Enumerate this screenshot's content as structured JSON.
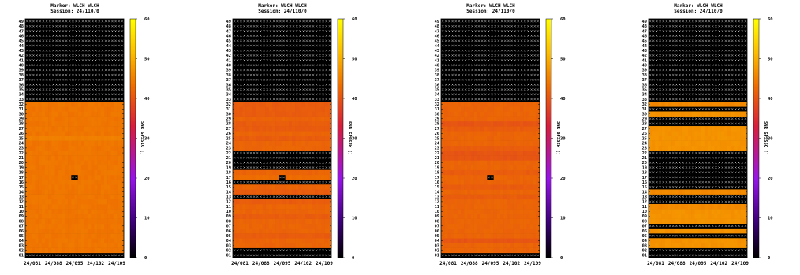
{
  "chart_data": [
    {
      "type": "heatmap",
      "title": "Marker: WLCH WLCH",
      "subtitle": "Session: 24/110/0",
      "colorbar_label": "SNR GPSS1C []",
      "x_ticks": [
        "24/081",
        "24/088",
        "24/095",
        "24/102",
        "24/109"
      ],
      "y_ticks": [
        "01",
        "02",
        "03",
        "04",
        "05",
        "06",
        "07",
        "08",
        "09",
        "10",
        "11",
        "12",
        "13",
        "14",
        "15",
        "16",
        "17",
        "18",
        "19",
        "20",
        "21",
        "22",
        "23",
        "24",
        "25",
        "26",
        "27",
        "28",
        "29",
        "30",
        "31",
        "32",
        "33",
        "34",
        "35",
        "36",
        "37",
        "38",
        "39",
        "40",
        "41",
        "42",
        "43",
        "44",
        "45",
        "46",
        "47",
        "48",
        "49"
      ],
      "colorbar_ticks": [
        0,
        10,
        20,
        30,
        40,
        50,
        60
      ],
      "zlim": [
        0,
        60
      ],
      "no_data_prn": [
        1,
        33,
        34,
        35,
        36,
        37,
        38,
        39,
        40,
        41,
        42,
        43,
        44,
        45,
        46,
        47,
        48,
        49
      ],
      "prn_values": {
        "02": 44,
        "03": 44,
        "04": 44,
        "05": 44,
        "06": 44,
        "07": 44,
        "08": 44,
        "09": 44,
        "10": 44,
        "11": 44,
        "12": 44,
        "13": 44,
        "14": 44,
        "15": 44,
        "16": 44,
        "17": 44,
        "18": 44,
        "19": 44,
        "20": 44,
        "21": 44,
        "22": 44,
        "23": 44,
        "24": 44,
        "25": 45,
        "26": 44,
        "27": 44,
        "28": 44,
        "29": 44,
        "30": 44,
        "31": 44,
        "32": 44
      },
      "gap": {
        "prn": 17,
        "day_index": 14
      }
    },
    {
      "type": "heatmap",
      "title": "Marker: WLCH WLCH",
      "subtitle": "Session: 24/110/0",
      "colorbar_label": "SNR GPSS2W []",
      "x_ticks": [
        "24/081",
        "24/088",
        "24/095",
        "24/102",
        "24/109"
      ],
      "y_ticks": [
        "01",
        "02",
        "03",
        "04",
        "05",
        "06",
        "07",
        "08",
        "09",
        "10",
        "11",
        "12",
        "13",
        "14",
        "15",
        "16",
        "17",
        "18",
        "19",
        "20",
        "21",
        "22",
        "23",
        "24",
        "25",
        "26",
        "27",
        "28",
        "29",
        "30",
        "31",
        "32",
        "33",
        "34",
        "35",
        "36",
        "37",
        "38",
        "39",
        "40",
        "41",
        "42",
        "43",
        "44",
        "45",
        "46",
        "47",
        "48",
        "49"
      ],
      "colorbar_ticks": [
        0,
        10,
        20,
        30,
        40,
        50,
        60
      ],
      "zlim": [
        0,
        60
      ],
      "no_data_prn": [
        1,
        2,
        13,
        16,
        19,
        20,
        21,
        22,
        33,
        34,
        35,
        36,
        37,
        38,
        39,
        40,
        41,
        42,
        43,
        44,
        45,
        46,
        47,
        48,
        49
      ],
      "prn_values": {
        "03": 42,
        "04": 42,
        "05": 41,
        "06": 42,
        "07": 42,
        "08": 42,
        "09": 41,
        "10": 42,
        "11": 42,
        "12": 41,
        "14": 41,
        "15": 42,
        "17": 43,
        "18": 42,
        "23": 42,
        "24": 42,
        "25": 41,
        "26": 42,
        "27": 41,
        "28": 41,
        "29": 42,
        "30": 41,
        "31": 41,
        "32": 41
      },
      "gap": {
        "prn": 17,
        "day_index": 14
      }
    },
    {
      "type": "heatmap",
      "title": "Marker: WLCH WLCH",
      "subtitle": "Session: 24/110/0",
      "colorbar_label": "SNR GPSS2W []",
      "x_ticks": [
        "24/081",
        "24/088",
        "24/095",
        "24/102",
        "24/109"
      ],
      "y_ticks": [
        "01",
        "02",
        "03",
        "04",
        "05",
        "06",
        "07",
        "08",
        "09",
        "10",
        "11",
        "12",
        "13",
        "14",
        "15",
        "16",
        "17",
        "18",
        "19",
        "20",
        "21",
        "22",
        "23",
        "24",
        "25",
        "26",
        "27",
        "28",
        "29",
        "30",
        "31",
        "32",
        "33",
        "34",
        "35",
        "36",
        "37",
        "38",
        "39",
        "40",
        "41",
        "42",
        "43",
        "44",
        "45",
        "46",
        "47",
        "48",
        "49"
      ],
      "colorbar_ticks": [
        0,
        10,
        20,
        30,
        40,
        50,
        60
      ],
      "zlim": [
        0,
        60
      ],
      "no_data_prn": [
        1,
        33,
        34,
        35,
        36,
        37,
        38,
        39,
        40,
        41,
        42,
        43,
        44,
        45,
        46,
        47,
        48,
        49
      ],
      "prn_values": {
        "02": 42,
        "03": 42,
        "04": 40,
        "05": 42,
        "06": 42,
        "07": 42,
        "08": 42,
        "09": 42,
        "10": 42,
        "11": 42,
        "12": 42,
        "13": 41,
        "14": 42,
        "15": 41,
        "16": 42,
        "17": 42,
        "18": 41,
        "19": 42,
        "20": 42,
        "21": 40,
        "22": 40,
        "23": 41,
        "24": 42,
        "25": 42,
        "26": 42,
        "27": 41,
        "28": 40,
        "29": 42,
        "30": 42,
        "31": 42,
        "32": 42
      },
      "gap": {
        "prn": 17,
        "day_index": 14
      }
    },
    {
      "type": "heatmap",
      "title": "Marker: WLCH WLCH",
      "subtitle": "Session: 24/110/0",
      "colorbar_label": "SNR GPSS5Q []",
      "x_ticks": [
        "24/081",
        "24/088",
        "24/095",
        "24/102",
        "24/109"
      ],
      "y_ticks": [
        "01",
        "02",
        "03",
        "04",
        "05",
        "06",
        "07",
        "08",
        "09",
        "10",
        "11",
        "12",
        "13",
        "14",
        "15",
        "16",
        "17",
        "18",
        "19",
        "20",
        "21",
        "22",
        "23",
        "24",
        "25",
        "26",
        "27",
        "28",
        "29",
        "30",
        "31",
        "32",
        "33",
        "34",
        "35",
        "36",
        "37",
        "38",
        "39",
        "40",
        "41",
        "42",
        "43",
        "44",
        "45",
        "46",
        "47",
        "48",
        "49"
      ],
      "colorbar_ticks": [
        0,
        10,
        20,
        30,
        40,
        50,
        60
      ],
      "zlim": [
        0,
        60
      ],
      "no_data_prn": [
        1,
        2,
        5,
        7,
        12,
        13,
        15,
        16,
        17,
        18,
        19,
        20,
        21,
        22,
        28,
        29,
        31,
        33,
        34,
        35,
        36,
        37,
        38,
        39,
        40,
        41,
        42,
        43,
        44,
        45,
        46,
        47,
        48,
        49
      ],
      "prn_values": {
        "03": 47,
        "04": 47,
        "06": 47,
        "08": 47,
        "09": 47,
        "10": 47,
        "11": 46,
        "14": 46,
        "23": 47,
        "24": 47,
        "25": 47,
        "26": 47,
        "27": 47,
        "30": 47,
        "32": 46
      },
      "gap": null
    }
  ]
}
